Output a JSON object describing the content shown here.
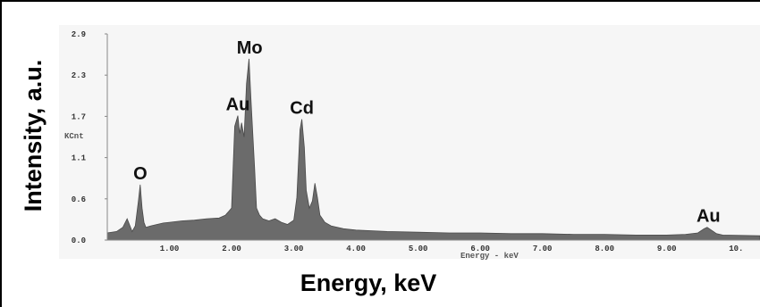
{
  "chart_data": {
    "type": "area",
    "xlabel": "Energy, keV",
    "ylabel": "Intensity, a.u.",
    "xlim": [
      0,
      10.5
    ],
    "ylim": [
      0,
      2.9
    ],
    "y_ticks": [
      "0.0",
      "0.6",
      "1.1",
      "1.7",
      "2.3",
      "2.9"
    ],
    "x_ticks": [
      "1.00",
      "2.00",
      "3.00",
      "4.00",
      "5.00",
      "6.00",
      "7.00",
      "8.00",
      "9.00",
      "10."
    ],
    "small_label_left": "KCnt",
    "small_label_bottom": "Energy - keV",
    "fill_color": "#6b6b6b",
    "series": [
      {
        "x": [
          0.0,
          0.15,
          0.25,
          0.32,
          0.4,
          0.45,
          0.5,
          0.53,
          0.56,
          0.59,
          0.62,
          0.7,
          0.8,
          0.9,
          1.0,
          1.2,
          1.4,
          1.6,
          1.8,
          1.9,
          2.0,
          2.05,
          2.1,
          2.13,
          2.16,
          2.2,
          2.24,
          2.28,
          2.31,
          2.34,
          2.37,
          2.4,
          2.45,
          2.5,
          2.6,
          2.7,
          2.8,
          2.9,
          3.0,
          3.05,
          3.1,
          3.13,
          3.17,
          3.2,
          3.25,
          3.3,
          3.34,
          3.38,
          3.42,
          3.46,
          3.5,
          3.6,
          3.8,
          4.0,
          4.5,
          5.0,
          5.5,
          6.0,
          6.5,
          7.0,
          7.5,
          8.0,
          8.5,
          9.0,
          9.3,
          9.5,
          9.6,
          9.65,
          9.7,
          9.75,
          9.8,
          9.9,
          10.5
        ],
        "y": [
          0.1,
          0.12,
          0.18,
          0.3,
          0.12,
          0.2,
          0.55,
          0.78,
          0.45,
          0.25,
          0.18,
          0.2,
          0.22,
          0.24,
          0.25,
          0.27,
          0.28,
          0.3,
          0.31,
          0.35,
          0.45,
          1.6,
          1.75,
          1.5,
          1.65,
          1.45,
          2.2,
          2.55,
          2.0,
          1.5,
          1.0,
          0.45,
          0.35,
          0.3,
          0.27,
          0.3,
          0.25,
          0.22,
          0.28,
          0.6,
          1.55,
          1.7,
          1.3,
          0.7,
          0.45,
          0.55,
          0.8,
          0.6,
          0.35,
          0.3,
          0.25,
          0.2,
          0.16,
          0.14,
          0.12,
          0.11,
          0.1,
          0.1,
          0.09,
          0.09,
          0.08,
          0.08,
          0.07,
          0.07,
          0.08,
          0.1,
          0.16,
          0.18,
          0.15,
          0.12,
          0.09,
          0.07,
          0.06
        ]
      }
    ],
    "annotations": [
      {
        "text": "O",
        "x": 0.53
      },
      {
        "text": "Au",
        "x": 2.1
      },
      {
        "text": "Mo",
        "x": 2.29
      },
      {
        "text": "Cd",
        "x": 3.13
      },
      {
        "text": "Au",
        "x": 9.67
      }
    ]
  }
}
